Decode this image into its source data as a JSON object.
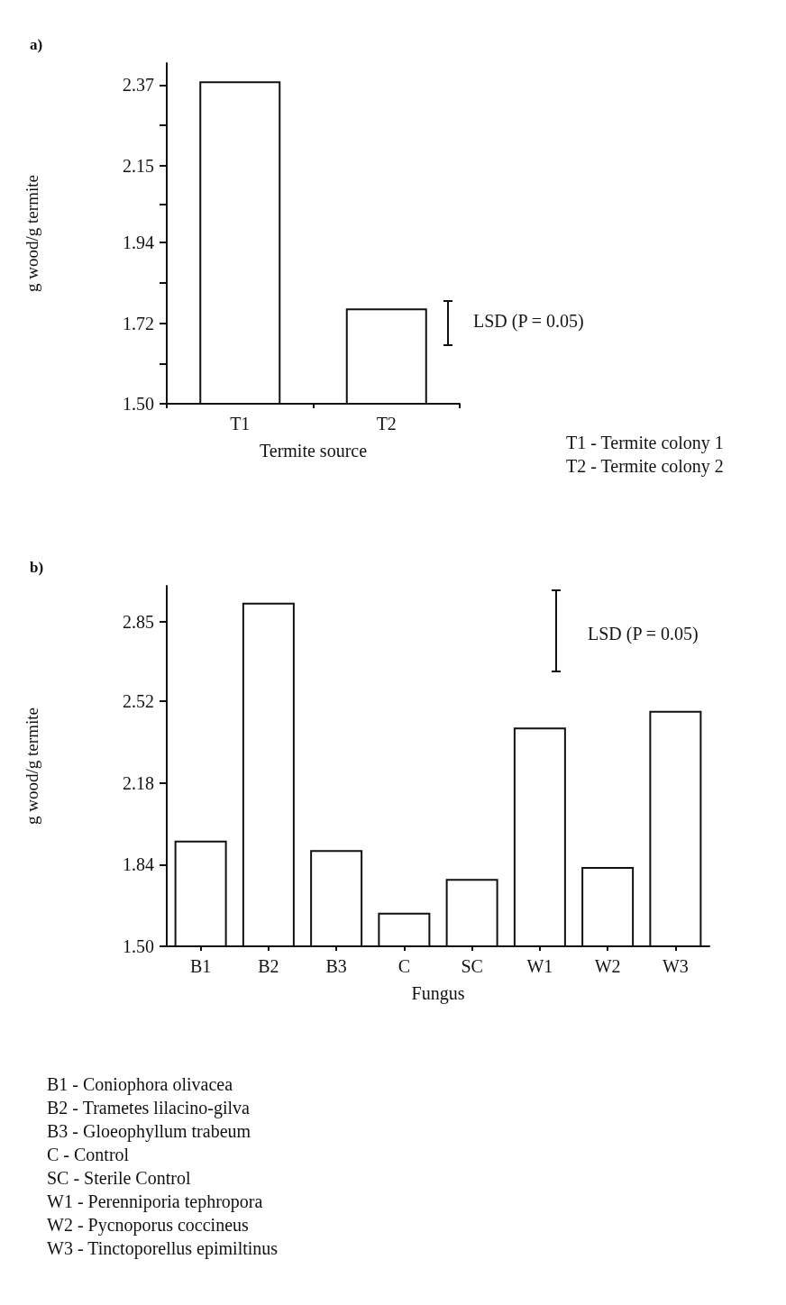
{
  "chart_data": [
    {
      "type": "bar",
      "title": "a)",
      "xlabel": "Termite source",
      "ylabel": "g wood/g termite",
      "categories": [
        "T1",
        "T2"
      ],
      "values": [
        2.38,
        1.76
      ],
      "color": "#ffffff",
      "ylim": [
        1.5,
        2.43
      ],
      "yticks": [
        {
          "value": 1.5,
          "label": "1.50"
        },
        {
          "value": 1.61,
          "label": null
        },
        1.72,
        {
          "value": 1.83,
          "label": null
        },
        1.94,
        {
          "value": 2.045,
          "label": null
        },
        2.15,
        {
          "value": 2.26,
          "label": null
        },
        2.37
      ],
      "grid": false,
      "annotations": [
        "LSD (P = 0.05)",
        "T1 - Termite colony 1",
        "T2 - Termite colony 2"
      ]
    },
    {
      "type": "bar",
      "title": "b)",
      "xlabel": "Fungus",
      "ylabel": "g wood/g termite",
      "categories": [
        "B1",
        "B2",
        "B3",
        "C",
        "SC",
        "W1",
        "W2",
        "W3"
      ],
      "values": [
        1.94,
        2.93,
        1.9,
        1.64,
        1.78,
        2.41,
        1.83,
        2.48
      ],
      "color": "#ffffff",
      "ylim": [
        1.5,
        3.0
      ],
      "yticks": [
        {
          "value": 1.5,
          "label": "1.50"
        },
        1.84,
        2.18,
        2.52,
        2.85
      ],
      "grid": false,
      "annotations": [
        "LSD (P = 0.05)",
        "B1 - Coniophora olivacea",
        "B2 - Trametes lilacino-gilva",
        "B3 - Gloeophyllum trabeum",
        "C - Control",
        "SC - Sterile Control",
        "W1 - Perenniporia tephropora",
        "W2 - Pycnoporus coccineus",
        "W3 - Tinctoporellus epimiltinus"
      ]
    }
  ]
}
